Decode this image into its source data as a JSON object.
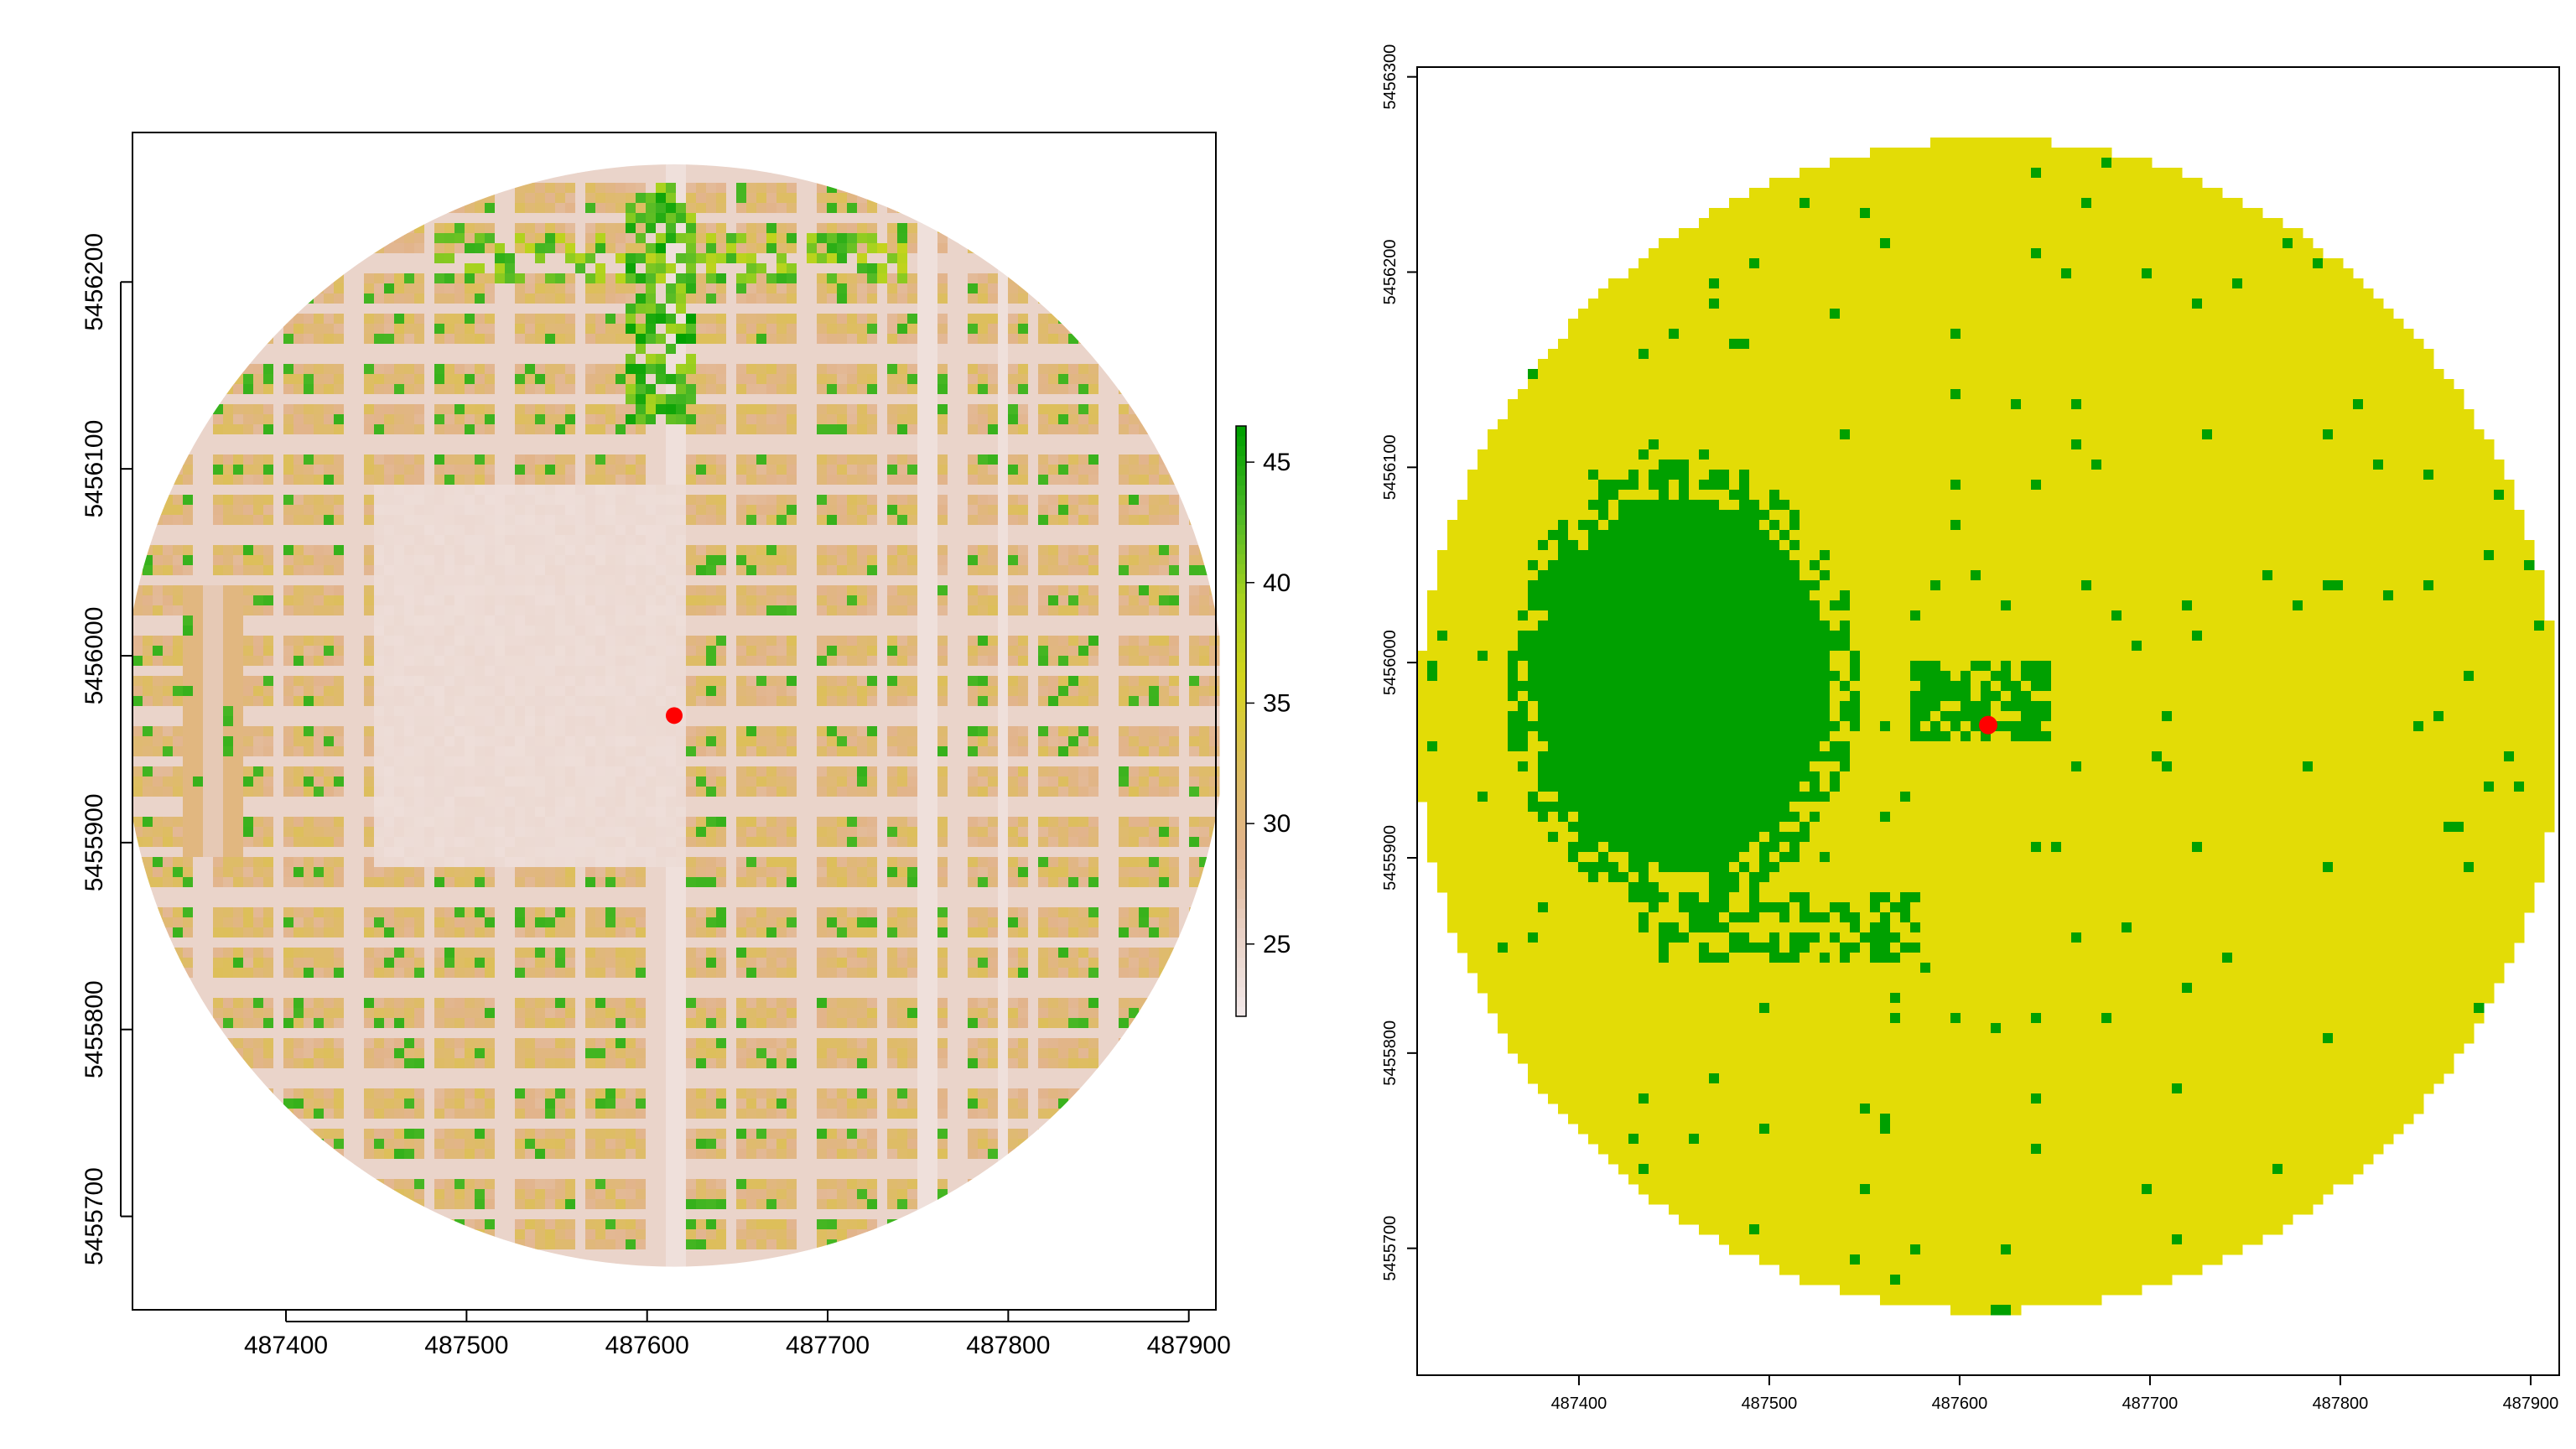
{
  "chart_data": [
    {
      "type": "heatmap",
      "panel": "left",
      "title": "",
      "xlabel": "",
      "ylabel": "",
      "xlim": [
        487315,
        487915
      ],
      "ylim": [
        5455650,
        5456280
      ],
      "x_ticks": [
        "487400",
        "487500",
        "487600",
        "487700",
        "487800",
        "487900"
      ],
      "y_ticks": [
        "5455700",
        "5455800",
        "5455900",
        "5456000",
        "5456100",
        "5456200"
      ],
      "legend": {
        "placement": "right",
        "range": [
          22,
          46.5
        ],
        "ticks": [
          "25",
          "30",
          "35",
          "40",
          "45"
        ],
        "colors": [
          "#f2e8e8",
          "#e8d0c4",
          "#e2b48c",
          "#ddbf5a",
          "#d4d41c",
          "#a6d21e",
          "#4cb826",
          "#00a000"
        ]
      },
      "circle": {
        "center_x": 487615,
        "center_y": 5455968,
        "radius": 300
      },
      "marker": {
        "x": 487615,
        "y": 5455968,
        "color": "#ff0000"
      }
    },
    {
      "type": "heatmap",
      "panel": "right",
      "title": "",
      "xlabel": "",
      "ylabel": "",
      "xlim": [
        487315,
        487915
      ],
      "ylim": [
        5455635,
        5456305
      ],
      "x_ticks": [
        "487400",
        "487500",
        "487600",
        "487700",
        "487800",
        "487900"
      ],
      "y_ticks": [
        "5455700",
        "5455800",
        "5455900",
        "5456000",
        "5456100",
        "5456200",
        "5456300"
      ],
      "colors": {
        "outside": "#e3dc06",
        "inside": "#00a000"
      },
      "circle": {
        "center_x": 487615,
        "center_y": 5455968,
        "radius": 300
      },
      "marker": {
        "x": 487615,
        "y": 5455968,
        "color": "#ff0000"
      }
    }
  ]
}
